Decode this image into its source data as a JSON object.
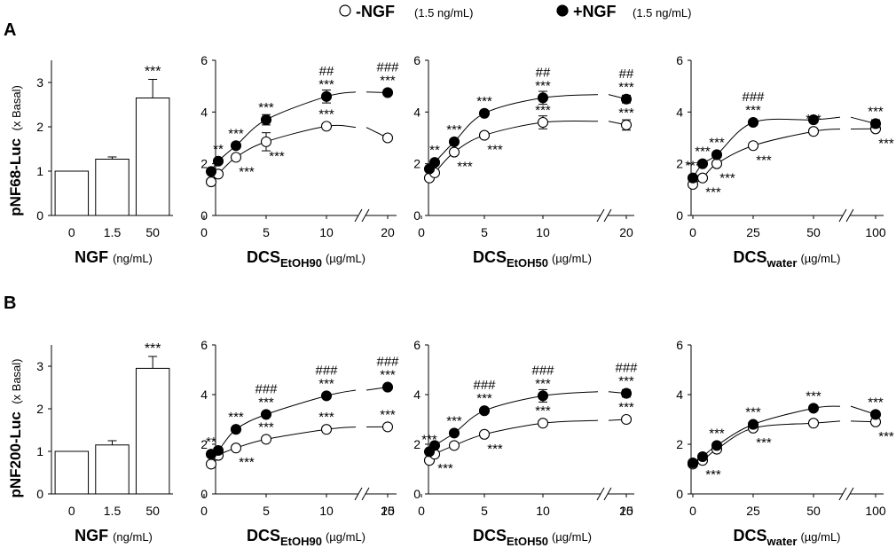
{
  "legend": {
    "neg_label": "-NGF",
    "neg_note": "(1.5 ng/mL)",
    "pos_label": "+NGF",
    "pos_note": "(1.5 ng/mL)"
  },
  "panels": [
    {
      "letter": "A",
      "ylabel": "pNF68-Luc",
      "yunit": "(x Basal)"
    },
    {
      "letter": "B",
      "ylabel": "pNF200-Luc",
      "yunit": "(x Basal)"
    }
  ],
  "xaxes": {
    "ngf": {
      "main": "NGF",
      "sub": "",
      "unit": "(ng/mL)"
    },
    "etoh90": {
      "main": "DCS",
      "sub": "EtOH90",
      "unit": "(µg/mL)"
    },
    "etoh50": {
      "main": "DCS",
      "sub": "EtOH50",
      "unit": "(µg/mL)"
    },
    "water": {
      "main": "DCS",
      "sub": "water",
      "unit": "(µg/mL)"
    }
  },
  "chart_data": [
    {
      "id": "A-ngf",
      "type": "bar",
      "row": "A",
      "col": 0,
      "xaxis": "ngf",
      "categories": [
        "0",
        "1.5",
        "50"
      ],
      "values": [
        1.0,
        1.27,
        2.65
      ],
      "errors": [
        0,
        0.05,
        0.42
      ],
      "annotations": [
        "",
        "",
        "***"
      ],
      "ylim": [
        0,
        3.5
      ],
      "yticks": [
        0,
        1,
        2,
        3
      ]
    },
    {
      "id": "A-etoh90",
      "type": "scatter",
      "row": "A",
      "col": 1,
      "xaxis": "etoh90",
      "xticks": [
        "0",
        "5",
        "10",
        "20"
      ],
      "ylim": [
        0,
        6
      ],
      "yticks": [
        0,
        2,
        4,
        6
      ],
      "series": [
        {
          "name": "-NGF",
          "points": [
            {
              "x": "0.5",
              "y": 1.3,
              "err": 0,
              "annot": [],
              "annot_side": "below"
            },
            {
              "x": "1",
              "y": 1.6,
              "err": 0,
              "annot": [],
              "annot_side": "below"
            },
            {
              "x": "2.5",
              "y": 2.25,
              "err": 0,
              "annot": [
                "***"
              ],
              "annot_side": "below"
            },
            {
              "x": "5",
              "y": 2.85,
              "err": 0.35,
              "annot": [
                "***"
              ],
              "annot_side": "below"
            },
            {
              "x": "10",
              "y": 3.45,
              "err": 0.1,
              "annot": [
                "***"
              ],
              "annot_side": "above"
            },
            {
              "x": "20",
              "y": 3.0,
              "err": 0,
              "annot": [],
              "annot_side": "above"
            }
          ]
        },
        {
          "name": "+NGF",
          "points": [
            {
              "x": "0.5",
              "y": 1.7,
              "err": 0,
              "annot": [],
              "annot_side": "above"
            },
            {
              "x": "1",
              "y": 2.1,
              "err": 0,
              "annot": [
                "**"
              ],
              "annot_side": "above"
            },
            {
              "x": "2.5",
              "y": 2.7,
              "err": 0,
              "annot": [
                "***"
              ],
              "annot_side": "above"
            },
            {
              "x": "5",
              "y": 3.7,
              "err": 0.2,
              "annot": [
                "***"
              ],
              "annot_side": "above"
            },
            {
              "x": "10",
              "y": 4.6,
              "err": 0.25,
              "annot": [
                "##",
                "***"
              ],
              "annot_side": "above"
            },
            {
              "x": "20",
              "y": 4.75,
              "err": 0.1,
              "annot": [
                "###",
                "***"
              ],
              "annot_side": "above"
            }
          ]
        }
      ]
    },
    {
      "id": "A-etoh50",
      "type": "scatter",
      "row": "A",
      "col": 2,
      "xaxis": "etoh50",
      "xticks": [
        "0",
        "5",
        "10",
        "20"
      ],
      "ylim": [
        0,
        6
      ],
      "yticks": [
        0,
        2,
        4,
        6
      ],
      "series": [
        {
          "name": "-NGF",
          "points": [
            {
              "x": "0.5",
              "y": 1.45,
              "err": 0,
              "annot": [],
              "annot_side": "below"
            },
            {
              "x": "1",
              "y": 1.65,
              "err": 0,
              "annot": [],
              "annot_side": "below"
            },
            {
              "x": "2.5",
              "y": 2.45,
              "err": 0,
              "annot": [
                "***"
              ],
              "annot_side": "below"
            },
            {
              "x": "5",
              "y": 3.1,
              "err": 0,
              "annot": [
                "***"
              ],
              "annot_side": "below"
            },
            {
              "x": "10",
              "y": 3.6,
              "err": 0.25,
              "annot": [
                "***"
              ],
              "annot_side": "above"
            },
            {
              "x": "20",
              "y": 3.5,
              "err": 0.2,
              "annot": [
                "***"
              ],
              "annot_side": "above"
            }
          ]
        },
        {
          "name": "+NGF",
          "points": [
            {
              "x": "0.5",
              "y": 1.8,
              "err": 0,
              "annot": [],
              "annot_side": "above"
            },
            {
              "x": "1",
              "y": 2.05,
              "err": 0,
              "annot": [
                "**"
              ],
              "annot_side": "above"
            },
            {
              "x": "2.5",
              "y": 2.85,
              "err": 0,
              "annot": [
                "***"
              ],
              "annot_side": "above"
            },
            {
              "x": "5",
              "y": 3.95,
              "err": 0,
              "annot": [
                "***"
              ],
              "annot_side": "above"
            },
            {
              "x": "10",
              "y": 4.55,
              "err": 0.25,
              "annot": [
                "##",
                "***"
              ],
              "annot_side": "above"
            },
            {
              "x": "20",
              "y": 4.5,
              "err": 0.15,
              "annot": [
                "##",
                "***"
              ],
              "annot_side": "above"
            }
          ]
        }
      ]
    },
    {
      "id": "A-water",
      "type": "scatter",
      "row": "A",
      "col": 3,
      "xaxis": "water",
      "xticks": [
        "0",
        "25",
        "50",
        "100"
      ],
      "ylim": [
        0,
        6
      ],
      "yticks": [
        0,
        2,
        4,
        6
      ],
      "series": [
        {
          "name": "-NGF",
          "points": [
            {
              "x": "2.5",
              "y": 1.2,
              "err": 0,
              "annot": [],
              "annot_side": "below"
            },
            {
              "x": "5",
              "y": 1.45,
              "err": 0,
              "annot": [
                "***"
              ],
              "annot_side": "below"
            },
            {
              "x": "10",
              "y": 2.0,
              "err": 0,
              "annot": [
                "***"
              ],
              "annot_side": "below"
            },
            {
              "x": "25",
              "y": 2.7,
              "err": 0,
              "annot": [
                "***"
              ],
              "annot_side": "below"
            },
            {
              "x": "50",
              "y": 3.25,
              "err": 0,
              "annot": [
                "***"
              ],
              "annot_side": "above"
            },
            {
              "x": "100",
              "y": 3.35,
              "err": 0,
              "annot": [
                "***"
              ],
              "annot_side": "below"
            }
          ]
        },
        {
          "name": "+NGF",
          "points": [
            {
              "x": "2.5",
              "y": 1.45,
              "err": 0,
              "annot": [
                "***"
              ],
              "annot_side": "above"
            },
            {
              "x": "5",
              "y": 2.0,
              "err": 0,
              "annot": [
                "***"
              ],
              "annot_side": "above"
            },
            {
              "x": "10",
              "y": 2.35,
              "err": 0,
              "annot": [
                "***"
              ],
              "annot_side": "above"
            },
            {
              "x": "25",
              "y": 3.6,
              "err": 0,
              "annot": [
                "###",
                "***"
              ],
              "annot_side": "above"
            },
            {
              "x": "50",
              "y": 3.7,
              "err": 0,
              "annot": [],
              "annot_side": "above"
            },
            {
              "x": "100",
              "y": 3.55,
              "err": 0.15,
              "annot": [
                "***"
              ],
              "annot_side": "above"
            }
          ]
        }
      ]
    },
    {
      "id": "B-ngf",
      "type": "bar",
      "row": "B",
      "col": 0,
      "xaxis": "ngf",
      "categories": [
        "0",
        "1.5",
        "50"
      ],
      "values": [
        1.0,
        1.15,
        2.95
      ],
      "errors": [
        0,
        0.1,
        0.28
      ],
      "annotations": [
        "",
        "",
        "***"
      ],
      "ylim": [
        0,
        3.5
      ],
      "yticks": [
        0,
        1,
        2,
        3
      ]
    },
    {
      "id": "B-etoh90",
      "type": "scatter",
      "row": "B",
      "col": 1,
      "xaxis": "etoh90",
      "xticks": [
        "0",
        "5",
        "10",
        "15",
        "20"
      ],
      "ylim": [
        0,
        6
      ],
      "yticks": [
        0,
        2,
        4,
        6
      ],
      "series": [
        {
          "name": "-NGF",
          "points": [
            {
              "x": "0.5",
              "y": 1.2,
              "err": 0,
              "annot": [],
              "annot_side": "below"
            },
            {
              "x": "1",
              "y": 1.55,
              "err": 0,
              "annot": [],
              "annot_side": "below"
            },
            {
              "x": "2.5",
              "y": 1.85,
              "err": 0,
              "annot": [
                "***"
              ],
              "annot_side": "below"
            },
            {
              "x": "5",
              "y": 2.2,
              "err": 0,
              "annot": [
                "***"
              ],
              "annot_side": "above"
            },
            {
              "x": "10",
              "y": 2.6,
              "err": 0,
              "annot": [
                "***"
              ],
              "annot_side": "above"
            },
            {
              "x": "20",
              "y": 2.7,
              "err": 0,
              "annot": [
                "***"
              ],
              "annot_side": "above"
            }
          ]
        },
        {
          "name": "+NGF",
          "points": [
            {
              "x": "0.5",
              "y": 1.6,
              "err": 0,
              "annot": [
                "**"
              ],
              "annot_side": "above"
            },
            {
              "x": "1",
              "y": 1.75,
              "err": 0,
              "annot": [],
              "annot_side": "above"
            },
            {
              "x": "2.5",
              "y": 2.6,
              "err": 0,
              "annot": [
                "***"
              ],
              "annot_side": "above"
            },
            {
              "x": "5",
              "y": 3.2,
              "err": 0,
              "annot": [
                "###",
                "***"
              ],
              "annot_side": "above"
            },
            {
              "x": "10",
              "y": 3.95,
              "err": 0,
              "annot": [
                "###",
                "***"
              ],
              "annot_side": "above"
            },
            {
              "x": "20",
              "y": 4.3,
              "err": 0,
              "annot": [
                "###",
                "***"
              ],
              "annot_side": "above"
            }
          ]
        }
      ]
    },
    {
      "id": "B-etoh50",
      "type": "scatter",
      "row": "B",
      "col": 2,
      "xaxis": "etoh50",
      "xticks": [
        "0",
        "5",
        "10",
        "15",
        "20"
      ],
      "ylim": [
        0,
        6
      ],
      "yticks": [
        0,
        2,
        4,
        6
      ],
      "series": [
        {
          "name": "-NGF",
          "points": [
            {
              "x": "0.5",
              "y": 1.35,
              "err": 0,
              "annot": [],
              "annot_side": "below"
            },
            {
              "x": "1",
              "y": 1.6,
              "err": 0,
              "annot": [
                "***"
              ],
              "annot_side": "below"
            },
            {
              "x": "2.5",
              "y": 1.95,
              "err": 0,
              "annot": [],
              "annot_side": "below"
            },
            {
              "x": "5",
              "y": 2.4,
              "err": 0,
              "annot": [
                "***"
              ],
              "annot_side": "below"
            },
            {
              "x": "10",
              "y": 2.85,
              "err": 0,
              "annot": [
                "***"
              ],
              "annot_side": "above"
            },
            {
              "x": "20",
              "y": 3.0,
              "err": 0,
              "annot": [
                "***"
              ],
              "annot_side": "above"
            }
          ]
        },
        {
          "name": "+NGF",
          "points": [
            {
              "x": "0.5",
              "y": 1.7,
              "err": 0,
              "annot": [
                "***"
              ],
              "annot_side": "above"
            },
            {
              "x": "1",
              "y": 1.95,
              "err": 0,
              "annot": [],
              "annot_side": "above"
            },
            {
              "x": "2.5",
              "y": 2.45,
              "err": 0,
              "annot": [
                "***"
              ],
              "annot_side": "above"
            },
            {
              "x": "5",
              "y": 3.35,
              "err": 0,
              "annot": [
                "###",
                "***"
              ],
              "annot_side": "above"
            },
            {
              "x": "10",
              "y": 3.95,
              "err": 0.25,
              "annot": [
                "###",
                "***"
              ],
              "annot_side": "above"
            },
            {
              "x": "20",
              "y": 4.05,
              "err": 0.15,
              "annot": [
                "###",
                "***"
              ],
              "annot_side": "above"
            }
          ]
        }
      ]
    },
    {
      "id": "B-water",
      "type": "scatter",
      "row": "B",
      "col": 3,
      "xaxis": "water",
      "xticks": [
        "0",
        "25",
        "50",
        "100"
      ],
      "ylim": [
        0,
        6
      ],
      "yticks": [
        0,
        2,
        4,
        6
      ],
      "series": [
        {
          "name": "-NGF",
          "points": [
            {
              "x": "2.5",
              "y": 1.2,
              "err": 0,
              "annot": [],
              "annot_side": "below"
            },
            {
              "x": "5",
              "y": 1.35,
              "err": 0,
              "annot": [
                "***"
              ],
              "annot_side": "below"
            },
            {
              "x": "10",
              "y": 1.8,
              "err": 0,
              "annot": [],
              "annot_side": "below"
            },
            {
              "x": "25",
              "y": 2.65,
              "err": 0,
              "annot": [
                "***"
              ],
              "annot_side": "below"
            },
            {
              "x": "50",
              "y": 2.85,
              "err": 0,
              "annot": [],
              "annot_side": "below"
            },
            {
              "x": "100",
              "y": 2.9,
              "err": 0,
              "annot": [
                "***"
              ],
              "annot_side": "below"
            }
          ]
        },
        {
          "name": "+NGF",
          "points": [
            {
              "x": "2.5",
              "y": 1.25,
              "err": 0,
              "annot": [],
              "annot_side": "above"
            },
            {
              "x": "5",
              "y": 1.5,
              "err": 0,
              "annot": [],
              "annot_side": "above"
            },
            {
              "x": "10",
              "y": 1.95,
              "err": 0,
              "annot": [
                "***"
              ],
              "annot_side": "above"
            },
            {
              "x": "25",
              "y": 2.8,
              "err": 0,
              "annot": [
                "***"
              ],
              "annot_side": "above"
            },
            {
              "x": "50",
              "y": 3.45,
              "err": 0,
              "annot": [
                "***"
              ],
              "annot_side": "above"
            },
            {
              "x": "100",
              "y": 3.2,
              "err": 0,
              "annot": [
                "***"
              ],
              "annot_side": "above"
            }
          ]
        }
      ]
    }
  ]
}
